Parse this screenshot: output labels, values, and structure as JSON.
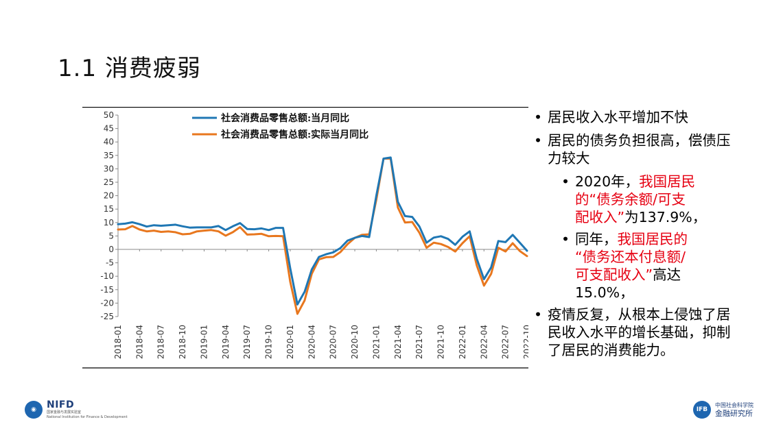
{
  "slide": {
    "title": "1.1 消费疲弱"
  },
  "colors": {
    "series_nominal": "#1f77b4",
    "series_real": "#e8771e",
    "highlight_red": "#e60012"
  },
  "chart_data": {
    "type": "line",
    "title": "",
    "xlabel": "",
    "ylabel": "",
    "ylim": [
      -25,
      50
    ],
    "yticks": [
      50,
      45,
      40,
      35,
      30,
      25,
      20,
      15,
      10,
      5,
      0,
      -5,
      -10,
      -15,
      -20,
      -25
    ],
    "grid": false,
    "legend_position": "top-center",
    "x_tick_labels": [
      "2018-01",
      "2018-04",
      "2018-07",
      "2018-10",
      "2019-01",
      "2019-04",
      "2019-07",
      "2019-10",
      "2020-01",
      "2020-04",
      "2020-07",
      "2020-10",
      "2021-01",
      "2021-04",
      "2021-07",
      "2021-10",
      "2022-01",
      "2022-04",
      "2022-07",
      "2022-10"
    ],
    "series": [
      {
        "name": "社会消费品零售总额:当月同比",
        "color_key": "series_nominal",
        "points": [
          [
            "2018-01",
            9.4
          ],
          [
            "2018-02",
            9.6
          ],
          [
            "2018-03",
            10.1
          ],
          [
            "2018-04",
            9.4
          ],
          [
            "2018-05",
            8.5
          ],
          [
            "2018-06",
            9.0
          ],
          [
            "2018-07",
            8.8
          ],
          [
            "2018-08",
            9.0
          ],
          [
            "2018-09",
            9.2
          ],
          [
            "2018-10",
            8.6
          ],
          [
            "2018-11",
            8.1
          ],
          [
            "2018-12",
            8.2
          ],
          [
            "2019-01",
            8.2
          ],
          [
            "2019-02",
            8.2
          ],
          [
            "2019-03",
            8.7
          ],
          [
            "2019-04",
            7.2
          ],
          [
            "2019-05",
            8.6
          ],
          [
            "2019-06",
            9.8
          ],
          [
            "2019-07",
            7.6
          ],
          [
            "2019-08",
            7.5
          ],
          [
            "2019-09",
            7.8
          ],
          [
            "2019-10",
            7.2
          ],
          [
            "2019-11",
            8.0
          ],
          [
            "2019-12",
            8.0
          ],
          [
            "2020-01",
            -7.0
          ],
          [
            "2020-02",
            -20.5
          ],
          [
            "2020-03",
            -15.8
          ],
          [
            "2020-04",
            -7.5
          ],
          [
            "2020-05",
            -2.8
          ],
          [
            "2020-06",
            -1.8
          ],
          [
            "2020-07",
            -1.1
          ],
          [
            "2020-08",
            0.5
          ],
          [
            "2020-09",
            3.3
          ],
          [
            "2020-10",
            4.3
          ],
          [
            "2020-11",
            5.0
          ],
          [
            "2020-12",
            4.6
          ],
          [
            "2021-01",
            20.0
          ],
          [
            "2021-02",
            33.8
          ],
          [
            "2021-03",
            34.2
          ],
          [
            "2021-04",
            17.7
          ],
          [
            "2021-05",
            12.4
          ],
          [
            "2021-06",
            12.1
          ],
          [
            "2021-07",
            8.5
          ],
          [
            "2021-08",
            2.5
          ],
          [
            "2021-09",
            4.4
          ],
          [
            "2021-10",
            4.9
          ],
          [
            "2021-11",
            3.9
          ],
          [
            "2021-12",
            1.7
          ],
          [
            "2022-01",
            4.7
          ],
          [
            "2022-02",
            6.7
          ],
          [
            "2022-03",
            -3.5
          ],
          [
            "2022-04",
            -11.1
          ],
          [
            "2022-05",
            -6.7
          ],
          [
            "2022-06",
            3.1
          ],
          [
            "2022-07",
            2.7
          ],
          [
            "2022-08",
            5.4
          ],
          [
            "2022-09",
            2.5
          ],
          [
            "2022-10",
            -0.5
          ]
        ]
      },
      {
        "name": "社会消费品零售总额:实际当月同比",
        "color_key": "series_real",
        "points": [
          [
            "2018-01",
            7.4
          ],
          [
            "2018-02",
            7.5
          ],
          [
            "2018-03",
            8.7
          ],
          [
            "2018-04",
            7.4
          ],
          [
            "2018-05",
            6.7
          ],
          [
            "2018-06",
            7.0
          ],
          [
            "2018-07",
            6.5
          ],
          [
            "2018-08",
            6.7
          ],
          [
            "2018-09",
            6.4
          ],
          [
            "2018-10",
            5.6
          ],
          [
            "2018-11",
            5.8
          ],
          [
            "2018-12",
            6.7
          ],
          [
            "2019-01",
            7.0
          ],
          [
            "2019-02",
            7.2
          ],
          [
            "2019-03",
            6.7
          ],
          [
            "2019-04",
            5.1
          ],
          [
            "2019-05",
            6.4
          ],
          [
            "2019-06",
            8.3
          ],
          [
            "2019-07",
            5.5
          ],
          [
            "2019-08",
            5.6
          ],
          [
            "2019-09",
            5.8
          ],
          [
            "2019-10",
            4.9
          ],
          [
            "2019-11",
            5.0
          ],
          [
            "2019-12",
            4.9
          ],
          [
            "2020-01",
            -12.0
          ],
          [
            "2020-02",
            -24.0
          ],
          [
            "2020-03",
            -19.0
          ],
          [
            "2020-04",
            -9.1
          ],
          [
            "2020-05",
            -3.7
          ],
          [
            "2020-06",
            -2.9
          ],
          [
            "2020-07",
            -2.8
          ],
          [
            "2020-08",
            -1.0
          ],
          [
            "2020-09",
            2.0
          ],
          [
            "2020-10",
            4.3
          ],
          [
            "2020-11",
            5.4
          ],
          [
            "2020-12",
            5.6
          ],
          [
            "2021-01",
            18.5
          ],
          [
            "2021-02",
            33.8
          ],
          [
            "2021-03",
            33.8
          ],
          [
            "2021-04",
            15.6
          ],
          [
            "2021-05",
            10.0
          ],
          [
            "2021-06",
            10.2
          ],
          [
            "2021-07",
            6.2
          ],
          [
            "2021-08",
            0.6
          ],
          [
            "2021-09",
            2.5
          ],
          [
            "2021-10",
            2.0
          ],
          [
            "2021-11",
            0.9
          ],
          [
            "2021-12",
            -0.8
          ],
          [
            "2022-01",
            2.3
          ],
          [
            "2022-02",
            4.9
          ],
          [
            "2022-03",
            -6.0
          ],
          [
            "2022-04",
            -13.5
          ],
          [
            "2022-05",
            -9.1
          ],
          [
            "2022-06",
            0.6
          ],
          [
            "2022-07",
            -0.8
          ],
          [
            "2022-08",
            2.3
          ],
          [
            "2022-09",
            -0.6
          ],
          [
            "2022-10",
            -2.5
          ]
        ]
      }
    ]
  },
  "bullets": [
    {
      "text": "居民收入水平增加不快"
    },
    {
      "text": "居民的债务负担很高，偿债压力较大"
    }
  ],
  "sub_bullets": [
    {
      "lines": [
        {
          "prefix": "2020年，",
          "red": "我国居民"
        },
        {
          "red": "的“债务余额/可支"
        },
        {
          "red": "配收入”",
          "suffix": "为137.9%，"
        }
      ]
    },
    {
      "lines": [
        {
          "prefix": "同年，",
          "red": "我国居民的"
        },
        {
          "red": "“债务还本付息额/"
        },
        {
          "red": "可支配收入”",
          "suffix": "高达"
        },
        {
          "prefix": "15.0%，"
        }
      ]
    }
  ],
  "last_bullet": {
    "text": "疫情反复，从根本上侵蚀了居民收入水平的增长基础，抑制了居民的消费能力。"
  },
  "logos": {
    "left": {
      "main": "NIFD",
      "sub_cn": "国家金融与发展实验室",
      "sub_en": "National Institution for Finance & Development",
      "icon": "nifd-logo-icon"
    },
    "right": {
      "mark": "IFB",
      "cn_line1": "中国社会科学院",
      "cn_line2": "金融研究所",
      "icon": "ifb-logo-icon"
    }
  }
}
